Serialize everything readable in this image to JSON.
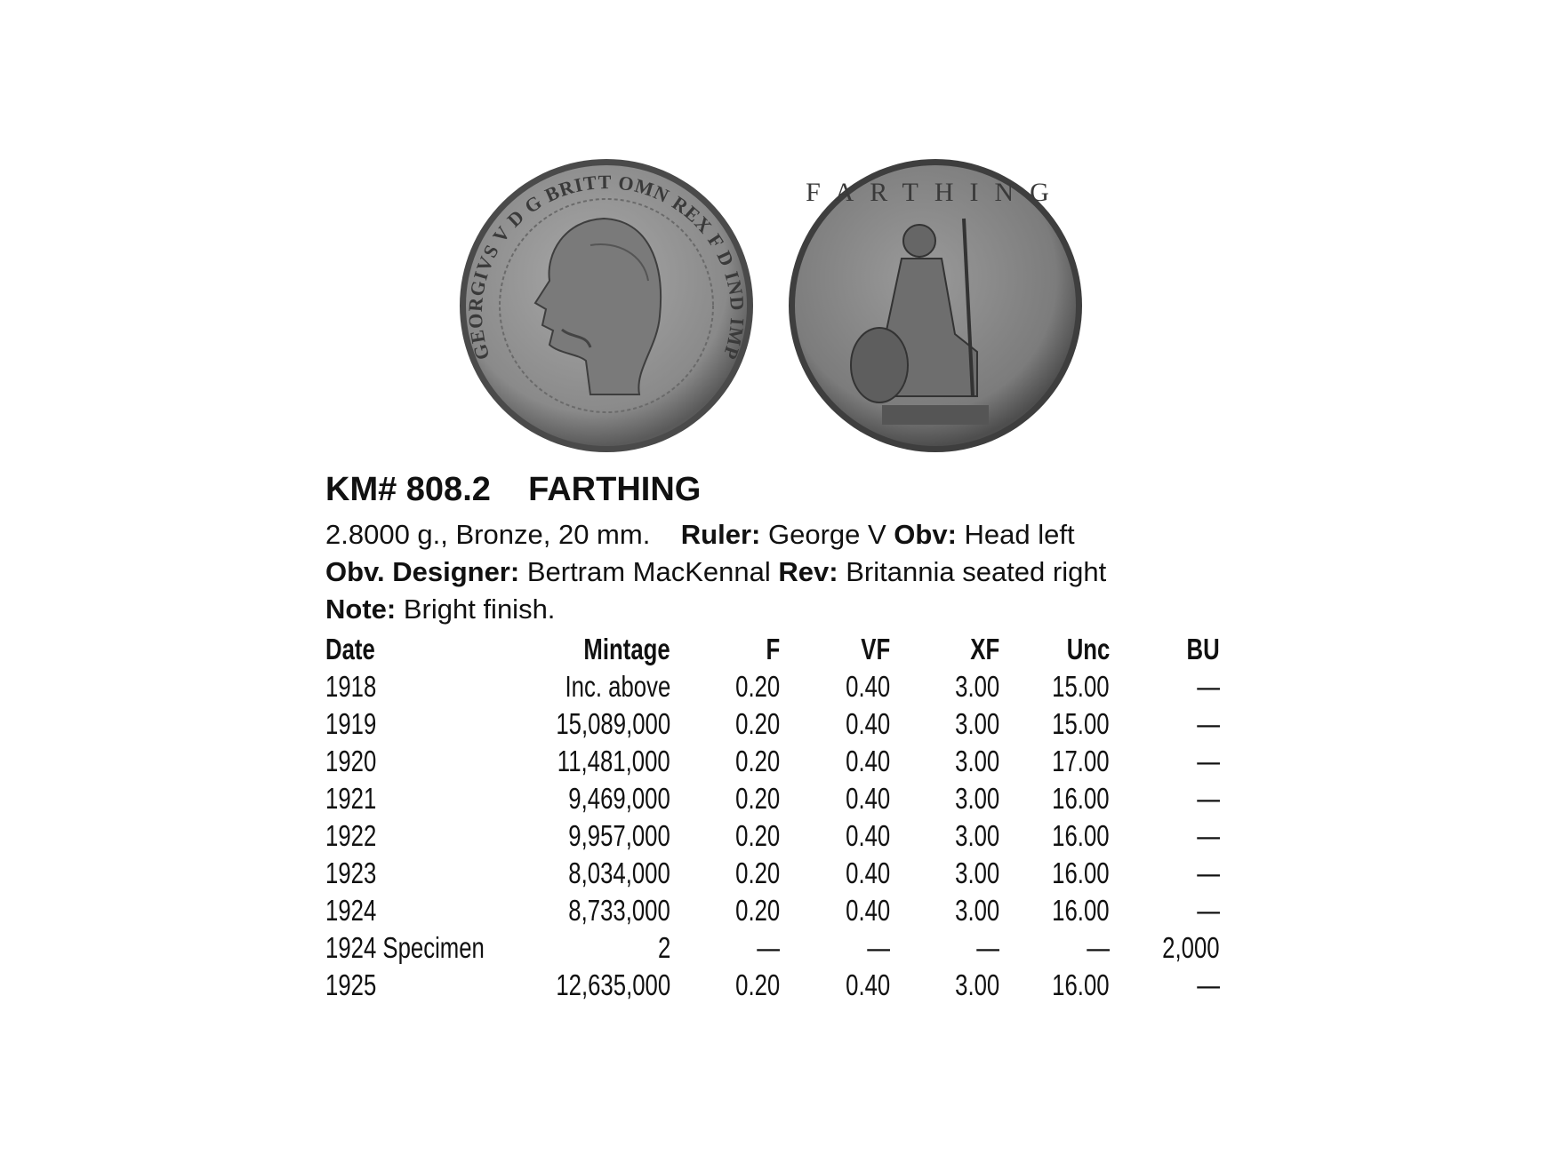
{
  "coins": {
    "obverse": {
      "icon": "coin-obverse-george-v-head-left",
      "legend": "GEORGIVS V D G BRITT OMN REX F D IND IMP"
    },
    "reverse": {
      "icon": "coin-reverse-britannia-seated",
      "legend": "FARTHING"
    }
  },
  "header": {
    "km_number": "KM# 808.2",
    "denomination": "FARTHING"
  },
  "specs": {
    "physical": "2.8000 g., Bronze, 20 mm.",
    "ruler_label": "Ruler:",
    "ruler_value": "George V",
    "obv_label": "Obv:",
    "obv_value": "Head left",
    "obv_designer_label": "Obv. Designer:",
    "obv_designer_value": "Bertram MacKennal",
    "rev_label": "Rev:",
    "rev_value": "Britannia seated right",
    "note_label": "Note:",
    "note_value": "Bright finish."
  },
  "table": {
    "columns": [
      "Date",
      "Mintage",
      "F",
      "VF",
      "XF",
      "Unc",
      "BU"
    ],
    "rows": [
      [
        "1918",
        "Inc. above",
        "0.20",
        "0.40",
        "3.00",
        "15.00",
        "—"
      ],
      [
        "1919",
        "15,089,000",
        "0.20",
        "0.40",
        "3.00",
        "15.00",
        "—"
      ],
      [
        "1920",
        "11,481,000",
        "0.20",
        "0.40",
        "3.00",
        "17.00",
        "—"
      ],
      [
        "1921",
        "9,469,000",
        "0.20",
        "0.40",
        "3.00",
        "16.00",
        "—"
      ],
      [
        "1922",
        "9,957,000",
        "0.20",
        "0.40",
        "3.00",
        "16.00",
        "—"
      ],
      [
        "1923",
        "8,034,000",
        "0.20",
        "0.40",
        "3.00",
        "16.00",
        "—"
      ],
      [
        "1924",
        "8,733,000",
        "0.20",
        "0.40",
        "3.00",
        "16.00",
        "—"
      ],
      [
        "1924 Specimen",
        "2",
        "—",
        "—",
        "—",
        "—",
        "2,000"
      ],
      [
        "1925",
        "12,635,000",
        "0.20",
        "0.40",
        "3.00",
        "16.00",
        "—"
      ]
    ]
  }
}
